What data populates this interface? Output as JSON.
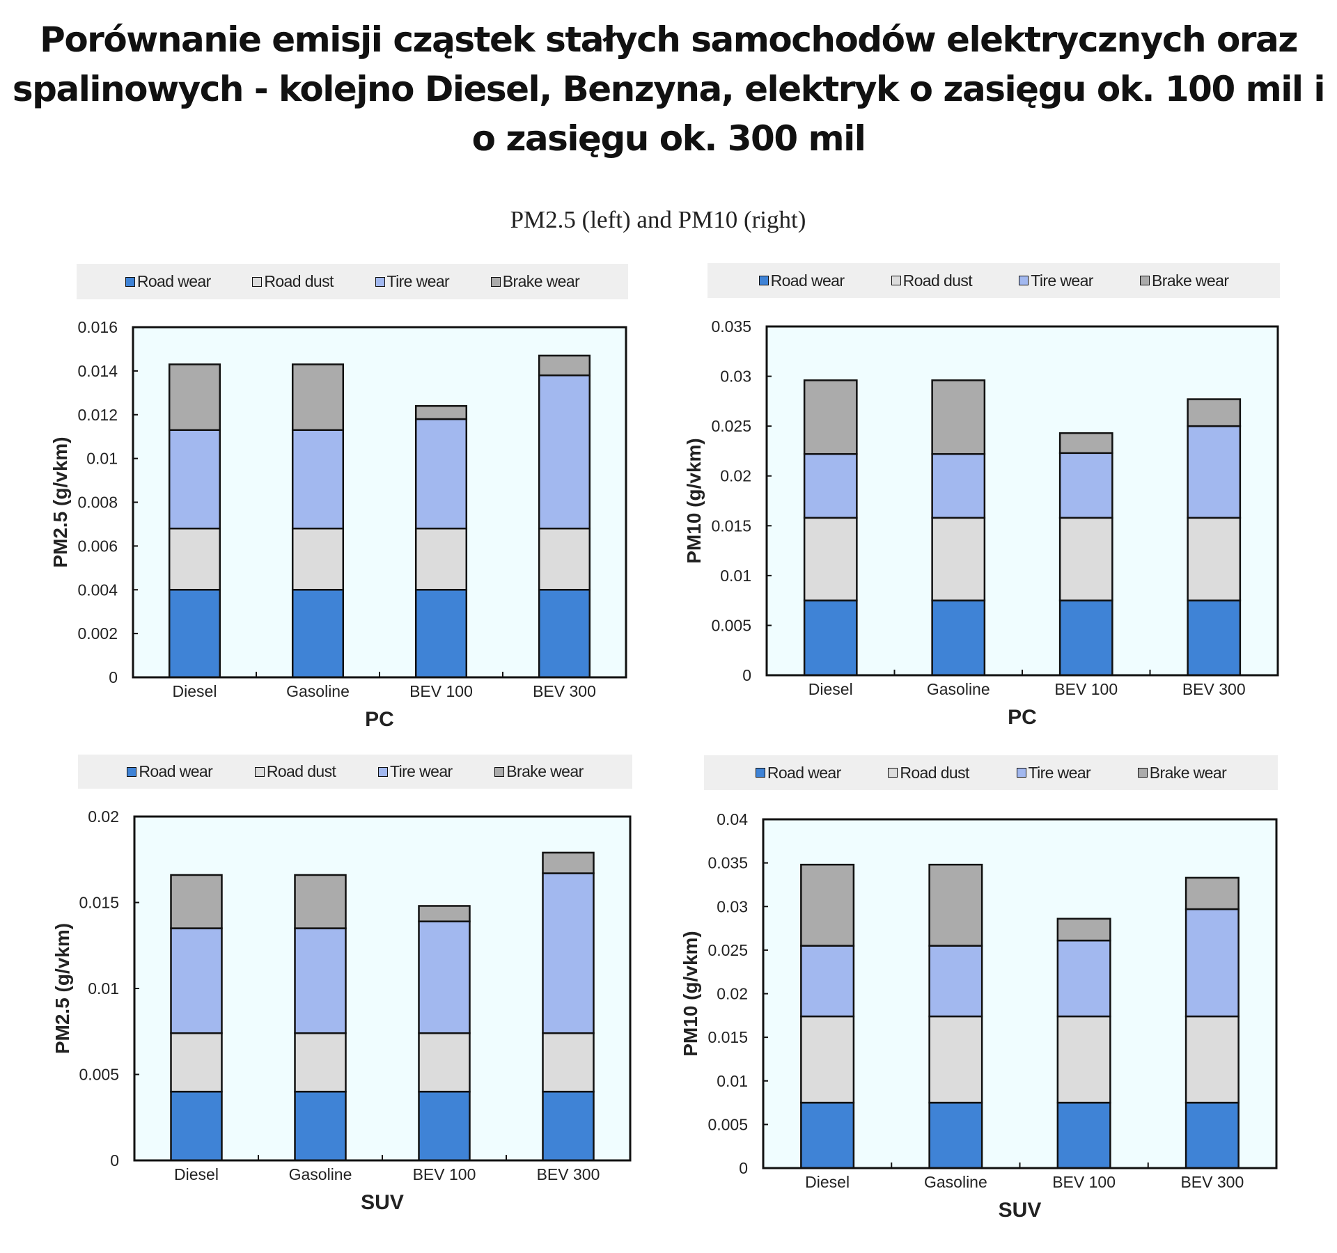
{
  "title": "Porównanie emisji cząstek stałych samochodów elektrycznych oraz spalinowych - kolejno Diesel, Benzyna, elektryk o zasięgu ok. 100 mil i o zasięgu ok. 300 mil",
  "subtitle": "PM2.5 (left) and PM10 (right)",
  "colors": {
    "Road wear": "#3f83d6",
    "Road dust": "#dcdcdc",
    "Tire wear": "#a2b8ef",
    "Brake wear": "#ababab",
    "plot_background": "#f0fdff",
    "legend_background": "#efefef"
  },
  "chart_data": [
    {
      "type": "bar",
      "stacked": true,
      "legend": "top",
      "xlabel": "PC",
      "ylabel": "PM2.5 (g/vkm)",
      "ylim": [
        0,
        0.016
      ],
      "yticks": [
        "0",
        "0.002",
        "0.004",
        "0.006",
        "0.008",
        "0.01",
        "0.012",
        "0.014",
        "0.016"
      ],
      "categories": [
        "Diesel",
        "Gasoline",
        "BEV 100",
        "BEV 300"
      ],
      "series": [
        {
          "name": "Road wear",
          "values": [
            0.004,
            0.004,
            0.004,
            0.004
          ]
        },
        {
          "name": "Road dust",
          "values": [
            0.0028,
            0.0028,
            0.0028,
            0.0028
          ]
        },
        {
          "name": "Tire wear",
          "values": [
            0.0045,
            0.0045,
            0.005,
            0.007
          ]
        },
        {
          "name": "Brake wear",
          "values": [
            0.003,
            0.003,
            0.0006,
            0.0009
          ]
        }
      ]
    },
    {
      "type": "bar",
      "stacked": true,
      "legend": "top",
      "xlabel": "PC",
      "ylabel": "PM10 (g/vkm)",
      "ylim": [
        0,
        0.035
      ],
      "yticks": [
        "0",
        "0.005",
        "0.01",
        "0.015",
        "0.02",
        "0.025",
        "0.03",
        "0.035"
      ],
      "categories": [
        "Diesel",
        "Gasoline",
        "BEV 100",
        "BEV 300"
      ],
      "series": [
        {
          "name": "Road wear",
          "values": [
            0.0075,
            0.0075,
            0.0075,
            0.0075
          ]
        },
        {
          "name": "Road dust",
          "values": [
            0.0083,
            0.0083,
            0.0083,
            0.0083
          ]
        },
        {
          "name": "Tire wear",
          "values": [
            0.0064,
            0.0064,
            0.0065,
            0.0092
          ]
        },
        {
          "name": "Brake wear",
          "values": [
            0.0074,
            0.0074,
            0.002,
            0.0027
          ]
        }
      ]
    },
    {
      "type": "bar",
      "stacked": true,
      "legend": "top",
      "xlabel": "SUV",
      "ylabel": "PM2.5 (g/vkm)",
      "ylim": [
        0,
        0.02
      ],
      "yticks": [
        "0",
        "0.005",
        "0.01",
        "0.015",
        "0.02"
      ],
      "categories": [
        "Diesel",
        "Gasoline",
        "BEV 100",
        "BEV 300"
      ],
      "series": [
        {
          "name": "Road wear",
          "values": [
            0.004,
            0.004,
            0.004,
            0.004
          ]
        },
        {
          "name": "Road dust",
          "values": [
            0.0034,
            0.0034,
            0.0034,
            0.0034
          ]
        },
        {
          "name": "Tire wear",
          "values": [
            0.0061,
            0.0061,
            0.0065,
            0.0093
          ]
        },
        {
          "name": "Brake wear",
          "values": [
            0.0031,
            0.0031,
            0.0009,
            0.0012
          ]
        }
      ]
    },
    {
      "type": "bar",
      "stacked": true,
      "legend": "top",
      "xlabel": "SUV",
      "ylabel": "PM10 (g/vkm)",
      "ylim": [
        0,
        0.04
      ],
      "yticks": [
        "0",
        "0.005",
        "0.01",
        "0.015",
        "0.02",
        "0.025",
        "0.03",
        "0.035",
        "0.04"
      ],
      "categories": [
        "Diesel",
        "Gasoline",
        "BEV 100",
        "BEV 300"
      ],
      "series": [
        {
          "name": "Road wear",
          "values": [
            0.0075,
            0.0075,
            0.0075,
            0.0075
          ]
        },
        {
          "name": "Road dust",
          "values": [
            0.0099,
            0.0099,
            0.0099,
            0.0099
          ]
        },
        {
          "name": "Tire wear",
          "values": [
            0.0081,
            0.0081,
            0.0087,
            0.0123
          ]
        },
        {
          "name": "Brake wear",
          "values": [
            0.0093,
            0.0093,
            0.0025,
            0.0036
          ]
        }
      ]
    }
  ]
}
